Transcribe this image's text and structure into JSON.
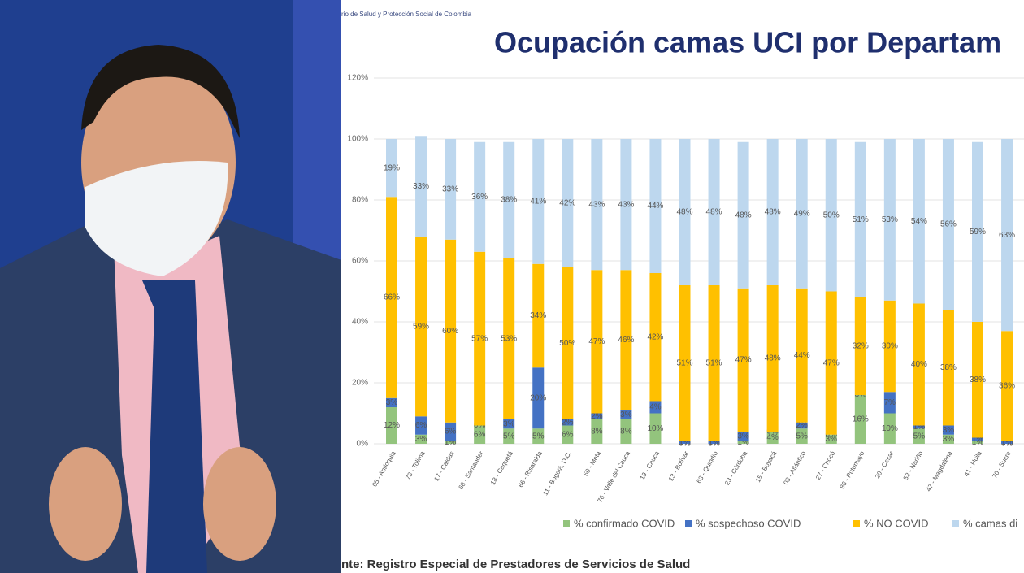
{
  "page": {
    "header": "rio de Salud y Protección Social de Colombia",
    "source": "nte: Registro Especial de Prestadores de Servicios de Salud"
  },
  "chart_data": {
    "type": "stacked_bar",
    "title": "Ocupación camas UCI por Departam",
    "categories": [
      "05 - Antioquia",
      "73 - Tolima",
      "17 - Caldas",
      "68 - Santander",
      "18 - Caquetá",
      "66 - Risaralda",
      "11 - Bogotá, D.C.",
      "50 - Meta",
      "76 - Valle del Cauca",
      "19 - Cauca",
      "13 - Bolívar",
      "63 - Quindío",
      "23 - Córdoba",
      "15 - Boyacá",
      "08 - Atlántico",
      "27 - Chocó",
      "86 - Putumayo",
      "20 - Cesar",
      "52 - Nariño",
      "47 - Magdalena",
      "41 - Huila",
      "70 - Sucre"
    ],
    "series": [
      {
        "name": "% confirmado COVID",
        "color": "#93c47d",
        "values": [
          12,
          3,
          1,
          6,
          5,
          5,
          6,
          8,
          8,
          10,
          0,
          0,
          1,
          4,
          5,
          3,
          16,
          10,
          5,
          3,
          1,
          0
        ],
        "value_labels": [
          "12%",
          "3%",
          "1%",
          "6%",
          "5%",
          "5%",
          "6%",
          "8%",
          "8%",
          "10%",
          "0%",
          "0%",
          "1%",
          "4%",
          "5%",
          "3%",
          "16%",
          "10%",
          "5%",
          "3%",
          "1%",
          "0%"
        ]
      },
      {
        "name": "% sospechoso COVID",
        "color": "#4472c4",
        "values": [
          3,
          6,
          6,
          0,
          3,
          20,
          2,
          2,
          3,
          4,
          1,
          1,
          3,
          0,
          2,
          0,
          0,
          7,
          1,
          3,
          1,
          1
        ],
        "value_labels": [
          "3%",
          "6%",
          "6%",
          "0%",
          "3%",
          "20%",
          "2%",
          "2%",
          "3%",
          "4%",
          "1%",
          "1%",
          "3%",
          "0%",
          "2%",
          "0%",
          "0%",
          "7%",
          "1%",
          "3%",
          "1%",
          "1%"
        ]
      },
      {
        "name": "% NO COVID",
        "color": "#ffc000",
        "values": [
          66,
          59,
          60,
          57,
          53,
          34,
          50,
          47,
          46,
          42,
          51,
          51,
          47,
          48,
          44,
          47,
          32,
          30,
          40,
          38,
          38,
          36
        ],
        "value_labels": [
          "66%",
          "59%",
          "60%",
          "57%",
          "53%",
          "34%",
          "50%",
          "47%",
          "46%",
          "42%",
          "51%",
          "51%",
          "47%",
          "48%",
          "44%",
          "47%",
          "32%",
          "30%",
          "40%",
          "38%",
          "38%",
          "36%"
        ]
      },
      {
        "name": "% camas di",
        "color": "#bdd7ee",
        "values": [
          19,
          33,
          33,
          36,
          38,
          41,
          42,
          43,
          43,
          44,
          48,
          48,
          48,
          48,
          49,
          50,
          51,
          53,
          54,
          56,
          59,
          63
        ],
        "value_labels": [
          "19%",
          "33%",
          "33%",
          "36%",
          "38%",
          "41%",
          "42%",
          "43%",
          "43%",
          "44%",
          "48%",
          "48%",
          "48%",
          "48%",
          "49%",
          "50%",
          "51%",
          "53%",
          "54%",
          "56%",
          "59%",
          "63%"
        ]
      }
    ],
    "ylim": [
      0,
      120
    ],
    "yticks": [
      {
        "value": 0,
        "label": "0%"
      },
      {
        "value": 20,
        "label": "20%"
      },
      {
        "value": 40,
        "label": "40%"
      },
      {
        "value": 60,
        "label": "60%"
      },
      {
        "value": 80,
        "label": "80%"
      },
      {
        "value": 100,
        "label": "100%"
      },
      {
        "value": 120,
        "label": "120%"
      }
    ],
    "grid": true,
    "legend": "bottom"
  }
}
